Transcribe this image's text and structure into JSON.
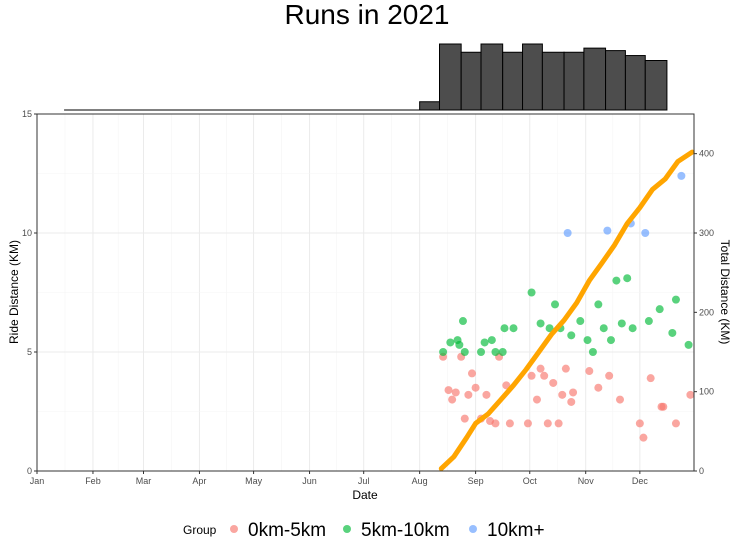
{
  "chart_data": {
    "type": "scatter",
    "title": "Runs in 2021",
    "xlabel": "Date",
    "ylabel": "Ride Distance (KM)",
    "ylabel_right": "Total Distance (KM)",
    "x_domain": [
      "2021-01-01",
      "2021-12-31"
    ],
    "x_ticks": [
      {
        "date": "2021-01-01",
        "label": "Jan"
      },
      {
        "date": "2021-02-01",
        "label": "Feb"
      },
      {
        "date": "2021-03-01",
        "label": "Mar"
      },
      {
        "date": "2021-04-01",
        "label": "Apr"
      },
      {
        "date": "2021-05-01",
        "label": "May"
      },
      {
        "date": "2021-06-01",
        "label": "Jun"
      },
      {
        "date": "2021-07-01",
        "label": "Jul"
      },
      {
        "date": "2021-08-01",
        "label": "Aug"
      },
      {
        "date": "2021-09-01",
        "label": "Sep"
      },
      {
        "date": "2021-10-01",
        "label": "Oct"
      },
      {
        "date": "2021-11-01",
        "label": "Nov"
      },
      {
        "date": "2021-12-01",
        "label": "Dec"
      }
    ],
    "ylim": [
      0,
      15
    ],
    "y_ticks": [
      0,
      5,
      10,
      15
    ],
    "ylim_right": [
      0,
      450
    ],
    "y_ticks_right": [
      0,
      100,
      200,
      300,
      400
    ],
    "grid": true,
    "legend": {
      "position": "bottom",
      "title": "Group",
      "entries": [
        {
          "label": "0km-5km",
          "color": "#F8766D"
        },
        {
          "label": "5km-10km",
          "color": "#00BA38"
        },
        {
          "label": "10km+",
          "color": "#619CFF"
        }
      ]
    },
    "series": [
      {
        "name": "0km-5km",
        "color": "#F8766D",
        "points": [
          {
            "x": "2021-08-14",
            "y": 4.8
          },
          {
            "x": "2021-08-17",
            "y": 3.4
          },
          {
            "x": "2021-08-19",
            "y": 3.0
          },
          {
            "x": "2021-08-21",
            "y": 3.3
          },
          {
            "x": "2021-08-24",
            "y": 4.8
          },
          {
            "x": "2021-08-26",
            "y": 2.2
          },
          {
            "x": "2021-08-28",
            "y": 3.2
          },
          {
            "x": "2021-08-30",
            "y": 4.1
          },
          {
            "x": "2021-09-01",
            "y": 3.5
          },
          {
            "x": "2021-09-04",
            "y": 2.2
          },
          {
            "x": "2021-09-07",
            "y": 3.2
          },
          {
            "x": "2021-09-09",
            "y": 2.1
          },
          {
            "x": "2021-09-12",
            "y": 2.0
          },
          {
            "x": "2021-09-14",
            "y": 4.8
          },
          {
            "x": "2021-09-18",
            "y": 3.6
          },
          {
            "x": "2021-09-20",
            "y": 2.0
          },
          {
            "x": "2021-09-30",
            "y": 2.0
          },
          {
            "x": "2021-10-02",
            "y": 4.0
          },
          {
            "x": "2021-10-05",
            "y": 3.0
          },
          {
            "x": "2021-10-07",
            "y": 4.3
          },
          {
            "x": "2021-10-09",
            "y": 4.0
          },
          {
            "x": "2021-10-11",
            "y": 2.0
          },
          {
            "x": "2021-10-14",
            "y": 3.7
          },
          {
            "x": "2021-10-17",
            "y": 2.0
          },
          {
            "x": "2021-10-19",
            "y": 3.2
          },
          {
            "x": "2021-10-21",
            "y": 4.3
          },
          {
            "x": "2021-10-24",
            "y": 2.9
          },
          {
            "x": "2021-10-25",
            "y": 3.3
          },
          {
            "x": "2021-11-03",
            "y": 4.2
          },
          {
            "x": "2021-11-08",
            "y": 3.5
          },
          {
            "x": "2021-11-14",
            "y": 4.0
          },
          {
            "x": "2021-11-20",
            "y": 3.0
          },
          {
            "x": "2021-12-01",
            "y": 2.0
          },
          {
            "x": "2021-12-03",
            "y": 1.4
          },
          {
            "x": "2021-12-07",
            "y": 3.9
          },
          {
            "x": "2021-12-13",
            "y": 2.7
          },
          {
            "x": "2021-12-14",
            "y": 2.7
          },
          {
            "x": "2021-12-21",
            "y": 2.0
          },
          {
            "x": "2021-12-29",
            "y": 3.2
          }
        ]
      },
      {
        "name": "5km-10km",
        "color": "#00BA38",
        "points": [
          {
            "x": "2021-08-14",
            "y": 5.0
          },
          {
            "x": "2021-08-18",
            "y": 5.4
          },
          {
            "x": "2021-08-22",
            "y": 5.5
          },
          {
            "x": "2021-08-23",
            "y": 5.3
          },
          {
            "x": "2021-08-25",
            "y": 6.3
          },
          {
            "x": "2021-08-26",
            "y": 5.0
          },
          {
            "x": "2021-09-04",
            "y": 5.0
          },
          {
            "x": "2021-09-06",
            "y": 5.4
          },
          {
            "x": "2021-09-10",
            "y": 5.5
          },
          {
            "x": "2021-09-12",
            "y": 5.0
          },
          {
            "x": "2021-09-16",
            "y": 5.0
          },
          {
            "x": "2021-09-17",
            "y": 6.0
          },
          {
            "x": "2021-09-22",
            "y": 6.0
          },
          {
            "x": "2021-10-02",
            "y": 7.5
          },
          {
            "x": "2021-10-07",
            "y": 6.2
          },
          {
            "x": "2021-10-12",
            "y": 6.0
          },
          {
            "x": "2021-10-15",
            "y": 7.0
          },
          {
            "x": "2021-10-18",
            "y": 6.0
          },
          {
            "x": "2021-10-24",
            "y": 5.7
          },
          {
            "x": "2021-10-29",
            "y": 6.3
          },
          {
            "x": "2021-11-02",
            "y": 5.5
          },
          {
            "x": "2021-11-05",
            "y": 5.0
          },
          {
            "x": "2021-11-08",
            "y": 7.0
          },
          {
            "x": "2021-11-11",
            "y": 6.0
          },
          {
            "x": "2021-11-15",
            "y": 5.5
          },
          {
            "x": "2021-11-18",
            "y": 8.0
          },
          {
            "x": "2021-11-21",
            "y": 6.2
          },
          {
            "x": "2021-11-24",
            "y": 8.1
          },
          {
            "x": "2021-11-27",
            "y": 6.0
          },
          {
            "x": "2021-12-06",
            "y": 6.3
          },
          {
            "x": "2021-12-12",
            "y": 6.8
          },
          {
            "x": "2021-12-19",
            "y": 5.8
          },
          {
            "x": "2021-12-21",
            "y": 7.2
          },
          {
            "x": "2021-12-28",
            "y": 5.3
          }
        ]
      },
      {
        "name": "10km+",
        "color": "#619CFF",
        "points": [
          {
            "x": "2021-10-22",
            "y": 10.0
          },
          {
            "x": "2021-11-13",
            "y": 10.1
          },
          {
            "x": "2021-11-26",
            "y": 10.4
          },
          {
            "x": "2021-12-04",
            "y": 10.0
          },
          {
            "x": "2021-12-24",
            "y": 12.4
          }
        ]
      }
    ],
    "cumulative_line": {
      "axis": "right",
      "color": "#FFA500",
      "points": [
        {
          "x": "2021-08-13",
          "y": 3
        },
        {
          "x": "2021-08-20",
          "y": 18
        },
        {
          "x": "2021-08-27",
          "y": 42
        },
        {
          "x": "2021-09-01",
          "y": 60
        },
        {
          "x": "2021-09-08",
          "y": 72
        },
        {
          "x": "2021-09-15",
          "y": 90
        },
        {
          "x": "2021-09-22",
          "y": 108
        },
        {
          "x": "2021-09-29",
          "y": 128
        },
        {
          "x": "2021-10-06",
          "y": 150
        },
        {
          "x": "2021-10-13",
          "y": 172
        },
        {
          "x": "2021-10-20",
          "y": 190
        },
        {
          "x": "2021-10-27",
          "y": 212
        },
        {
          "x": "2021-11-03",
          "y": 240
        },
        {
          "x": "2021-11-10",
          "y": 262
        },
        {
          "x": "2021-11-17",
          "y": 285
        },
        {
          "x": "2021-11-24",
          "y": 312
        },
        {
          "x": "2021-12-01",
          "y": 332
        },
        {
          "x": "2021-12-08",
          "y": 355
        },
        {
          "x": "2021-12-15",
          "y": 368
        },
        {
          "x": "2021-12-22",
          "y": 390
        },
        {
          "x": "2021-12-30",
          "y": 402
        }
      ]
    },
    "histogram": {
      "bins": [
        {
          "start": "2021-01-16",
          "end": "2021-08-01",
          "count": 0
        },
        {
          "start": "2021-08-01",
          "end": "2021-08-12",
          "count": 1
        },
        {
          "start": "2021-08-12",
          "end": "2021-08-24",
          "count": 8
        },
        {
          "start": "2021-08-24",
          "end": "2021-09-04",
          "count": 7
        },
        {
          "start": "2021-09-04",
          "end": "2021-09-16",
          "count": 8
        },
        {
          "start": "2021-09-16",
          "end": "2021-09-27",
          "count": 7
        },
        {
          "start": "2021-09-27",
          "end": "2021-10-08",
          "count": 8
        },
        {
          "start": "2021-10-08",
          "end": "2021-10-20",
          "count": 7
        },
        {
          "start": "2021-10-20",
          "end": "2021-10-31",
          "count": 7
        },
        {
          "start": "2021-10-31",
          "end": "2021-11-12",
          "count": 7.5
        },
        {
          "start": "2021-11-12",
          "end": "2021-11-23",
          "count": 7.2
        },
        {
          "start": "2021-11-23",
          "end": "2021-12-04",
          "count": 6.6
        },
        {
          "start": "2021-12-04",
          "end": "2021-12-16",
          "count": 6
        }
      ]
    }
  }
}
